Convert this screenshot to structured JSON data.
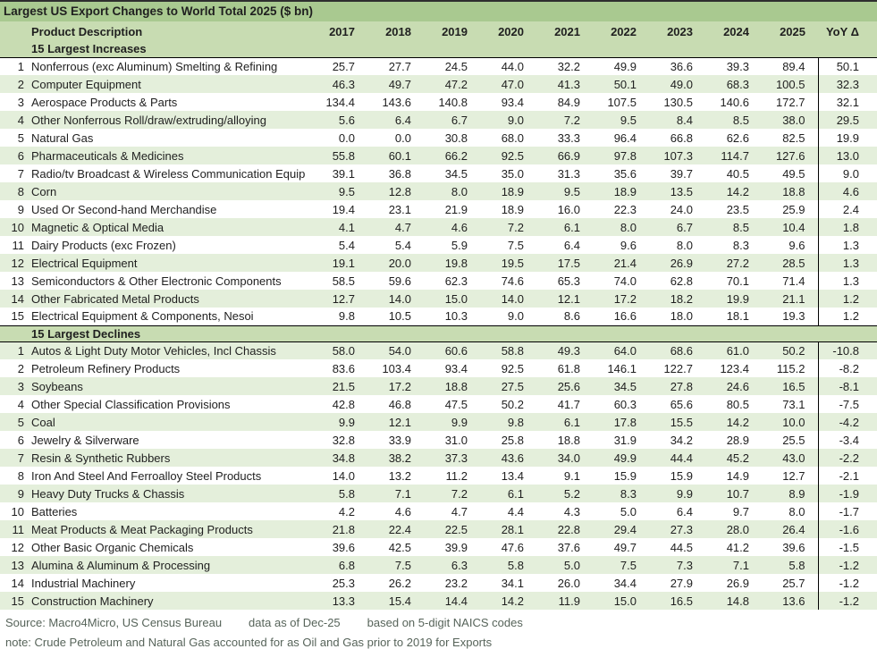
{
  "chart_data": {
    "type": "table",
    "title": "Largest US Export Changes to World Total 2025 ($ bn)",
    "header": {
      "product": "Product Description",
      "years": [
        "2017",
        "2018",
        "2019",
        "2020",
        "2021",
        "2022",
        "2023",
        "2024",
        "2025"
      ],
      "yoy": "YoY Δ"
    },
    "sections": [
      {
        "label": "15 Largest Increases",
        "zebra_start": "white",
        "rows": [
          {
            "n": "1",
            "name": "Nonferrous (exc Aluminum) Smelting & Refining",
            "values": [
              "25.7",
              "27.7",
              "24.5",
              "44.0",
              "32.2",
              "49.9",
              "36.6",
              "39.3",
              "89.4"
            ],
            "yoy": "50.1"
          },
          {
            "n": "2",
            "name": "Computer Equipment",
            "values": [
              "46.3",
              "49.7",
              "47.2",
              "47.0",
              "41.3",
              "50.1",
              "49.0",
              "68.3",
              "100.5"
            ],
            "yoy": "32.3"
          },
          {
            "n": "3",
            "name": "Aerospace Products & Parts",
            "values": [
              "134.4",
              "143.6",
              "140.8",
              "93.4",
              "84.9",
              "107.5",
              "130.5",
              "140.6",
              "172.7"
            ],
            "yoy": "32.1"
          },
          {
            "n": "4",
            "name": "Other Nonferrous Roll/draw/extruding/alloying",
            "values": [
              "5.6",
              "6.4",
              "6.7",
              "9.0",
              "7.2",
              "9.5",
              "8.4",
              "8.5",
              "38.0"
            ],
            "yoy": "29.5"
          },
          {
            "n": "5",
            "name": "Natural Gas",
            "values": [
              "0.0",
              "0.0",
              "30.8",
              "68.0",
              "33.3",
              "96.4",
              "66.8",
              "62.6",
              "82.5"
            ],
            "yoy": "19.9"
          },
          {
            "n": "6",
            "name": "Pharmaceuticals & Medicines",
            "values": [
              "55.8",
              "60.1",
              "66.2",
              "92.5",
              "66.9",
              "97.8",
              "107.3",
              "114.7",
              "127.6"
            ],
            "yoy": "13.0"
          },
          {
            "n": "7",
            "name": "Radio/tv Broadcast & Wireless Communication Equip",
            "values": [
              "39.1",
              "36.8",
              "34.5",
              "35.0",
              "31.3",
              "35.6",
              "39.7",
              "40.5",
              "49.5"
            ],
            "yoy": "9.0"
          },
          {
            "n": "8",
            "name": "Corn",
            "values": [
              "9.5",
              "12.8",
              "8.0",
              "18.9",
              "9.5",
              "18.9",
              "13.5",
              "14.2",
              "18.8"
            ],
            "yoy": "4.6"
          },
          {
            "n": "9",
            "name": "Used Or Second-hand Merchandise",
            "values": [
              "19.4",
              "23.1",
              "21.9",
              "18.9",
              "16.0",
              "22.3",
              "24.0",
              "23.5",
              "25.9"
            ],
            "yoy": "2.4"
          },
          {
            "n": "10",
            "name": "Magnetic & Optical Media",
            "values": [
              "4.1",
              "4.7",
              "4.6",
              "7.2",
              "6.1",
              "8.0",
              "6.7",
              "8.5",
              "10.4"
            ],
            "yoy": "1.8"
          },
          {
            "n": "11",
            "name": "Dairy Products (exc Frozen)",
            "values": [
              "5.4",
              "5.4",
              "5.9",
              "7.5",
              "6.4",
              "9.6",
              "8.0",
              "8.3",
              "9.6"
            ],
            "yoy": "1.3"
          },
          {
            "n": "12",
            "name": "Electrical Equipment",
            "values": [
              "19.1",
              "20.0",
              "19.8",
              "19.5",
              "17.5",
              "21.4",
              "26.9",
              "27.2",
              "28.5"
            ],
            "yoy": "1.3"
          },
          {
            "n": "13",
            "name": "Semiconductors & Other Electronic Components",
            "values": [
              "58.5",
              "59.6",
              "62.3",
              "74.6",
              "65.3",
              "74.0",
              "62.8",
              "70.1",
              "71.4"
            ],
            "yoy": "1.3"
          },
          {
            "n": "14",
            "name": "Other Fabricated Metal Products",
            "values": [
              "12.7",
              "14.0",
              "15.0",
              "14.0",
              "12.1",
              "17.2",
              "18.2",
              "19.9",
              "21.1"
            ],
            "yoy": "1.2"
          },
          {
            "n": "15",
            "name": "Electrical Equipment & Components, Nesoi",
            "values": [
              "9.8",
              "10.5",
              "10.3",
              "9.0",
              "8.6",
              "16.6",
              "18.0",
              "18.1",
              "19.3"
            ],
            "yoy": "1.2"
          }
        ]
      },
      {
        "label": "15 Largest Declines",
        "zebra_start": "green",
        "rows": [
          {
            "n": "1",
            "name": "Autos & Light Duty Motor Vehicles, Incl Chassis",
            "values": [
              "58.0",
              "54.0",
              "60.6",
              "58.8",
              "49.3",
              "64.0",
              "68.6",
              "61.0",
              "50.2"
            ],
            "yoy": "-10.8"
          },
          {
            "n": "2",
            "name": "Petroleum Refinery Products",
            "values": [
              "83.6",
              "103.4",
              "93.4",
              "92.5",
              "61.8",
              "146.1",
              "122.7",
              "123.4",
              "115.2"
            ],
            "yoy": "-8.2"
          },
          {
            "n": "3",
            "name": "Soybeans",
            "values": [
              "21.5",
              "17.2",
              "18.8",
              "27.5",
              "25.6",
              "34.5",
              "27.8",
              "24.6",
              "16.5"
            ],
            "yoy": "-8.1"
          },
          {
            "n": "4",
            "name": "Other Special Classification Provisions",
            "values": [
              "42.8",
              "46.8",
              "47.5",
              "50.2",
              "41.7",
              "60.3",
              "65.6",
              "80.5",
              "73.1"
            ],
            "yoy": "-7.5"
          },
          {
            "n": "5",
            "name": "Coal",
            "values": [
              "9.9",
              "12.1",
              "9.9",
              "9.8",
              "6.1",
              "17.8",
              "15.5",
              "14.2",
              "10.0"
            ],
            "yoy": "-4.2"
          },
          {
            "n": "6",
            "name": "Jewelry & Silverware",
            "values": [
              "32.8",
              "33.9",
              "31.0",
              "25.8",
              "18.8",
              "31.9",
              "34.2",
              "28.9",
              "25.5"
            ],
            "yoy": "-3.4"
          },
          {
            "n": "7",
            "name": "Resin & Synthetic Rubbers",
            "values": [
              "34.8",
              "38.2",
              "37.3",
              "43.6",
              "34.0",
              "49.9",
              "44.4",
              "45.2",
              "43.0"
            ],
            "yoy": "-2.2"
          },
          {
            "n": "8",
            "name": "Iron And Steel And Ferroalloy Steel Products",
            "values": [
              "14.0",
              "13.2",
              "11.2",
              "13.4",
              "9.1",
              "15.9",
              "15.9",
              "14.9",
              "12.7"
            ],
            "yoy": "-2.1"
          },
          {
            "n": "9",
            "name": "Heavy Duty Trucks & Chassis",
            "values": [
              "5.8",
              "7.1",
              "7.2",
              "6.1",
              "5.2",
              "8.3",
              "9.9",
              "10.7",
              "8.9"
            ],
            "yoy": "-1.9"
          },
          {
            "n": "10",
            "name": "Batteries",
            "values": [
              "4.2",
              "4.6",
              "4.7",
              "4.4",
              "4.3",
              "5.0",
              "6.4",
              "9.7",
              "8.0"
            ],
            "yoy": "-1.7"
          },
          {
            "n": "11",
            "name": "Meat Products & Meat Packaging Products",
            "values": [
              "21.8",
              "22.4",
              "22.5",
              "28.1",
              "22.8",
              "29.4",
              "27.3",
              "28.0",
              "26.4"
            ],
            "yoy": "-1.6"
          },
          {
            "n": "12",
            "name": "Other Basic Organic Chemicals",
            "values": [
              "39.6",
              "42.5",
              "39.9",
              "47.6",
              "37.6",
              "49.7",
              "44.5",
              "41.2",
              "39.6"
            ],
            "yoy": "-1.5"
          },
          {
            "n": "13",
            "name": "Alumina & Aluminum  & Processing",
            "values": [
              "6.8",
              "7.5",
              "6.3",
              "5.8",
              "5.0",
              "7.5",
              "7.3",
              "7.1",
              "5.8"
            ],
            "yoy": "-1.2"
          },
          {
            "n": "14",
            "name": "Industrial Machinery",
            "values": [
              "25.3",
              "26.2",
              "23.2",
              "34.1",
              "26.0",
              "34.4",
              "27.9",
              "26.9",
              "25.7"
            ],
            "yoy": "-1.2"
          },
          {
            "n": "15",
            "name": "Construction Machinery",
            "values": [
              "13.3",
              "15.4",
              "14.4",
              "14.2",
              "11.9",
              "15.0",
              "16.5",
              "14.8",
              "13.6"
            ],
            "yoy": "-1.2"
          }
        ]
      }
    ],
    "layout": {
      "grid": false,
      "zebra_colors": [
        "#ffffff",
        "#e4efdb"
      ],
      "yoy_separator": true
    }
  },
  "colors": {
    "title_bg": "#a9c990",
    "header_bg": "#c8dcb2",
    "row_alt_bg": "#e4efdb",
    "row_bg": "#ffffff",
    "border": "#000000",
    "footer_text": "#57645a"
  },
  "footer": {
    "source": "Source: Macro4Micro, US Census Bureau",
    "as_of": "data as of Dec-25",
    "basis": "based on 5-digit NAICS codes",
    "note": "note: Crude Petroleum and Natural Gas accounted for as Oil and Gas prior to 2019 for Exports"
  }
}
